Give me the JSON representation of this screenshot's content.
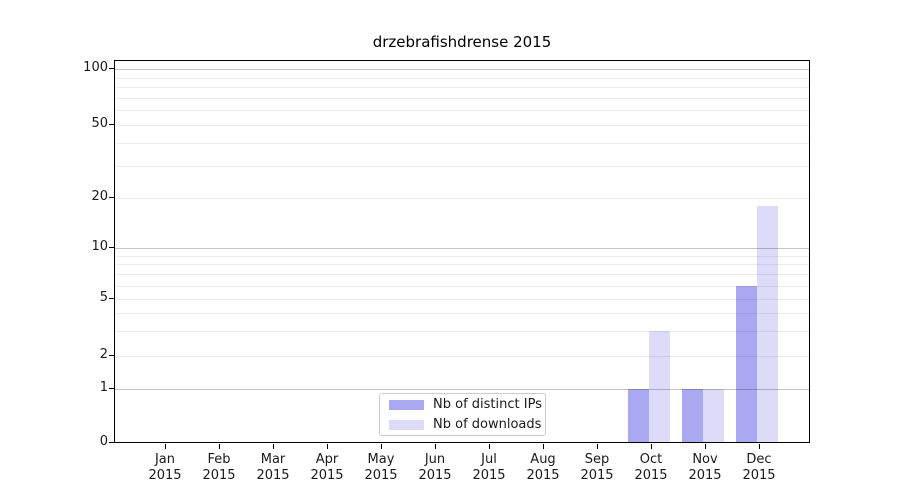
{
  "chart_data": {
    "type": "bar",
    "title": "drzebrafishdrense 2015",
    "categories": [
      "Jan 2015",
      "Feb 2015",
      "Mar 2015",
      "Apr 2015",
      "May 2015",
      "Jun 2015",
      "Jul 2015",
      "Aug 2015",
      "Sep 2015",
      "Oct 2015",
      "Nov 2015",
      "Dec 2015"
    ],
    "x_tick_lines": [
      [
        "Jan",
        "2015"
      ],
      [
        "Feb",
        "2015"
      ],
      [
        "Mar",
        "2015"
      ],
      [
        "Apr",
        "2015"
      ],
      [
        "May",
        "2015"
      ],
      [
        "Jun",
        "2015"
      ],
      [
        "Jul",
        "2015"
      ],
      [
        "Aug",
        "2015"
      ],
      [
        "Sep",
        "2015"
      ],
      [
        "Oct",
        "2015"
      ],
      [
        "Nov",
        "2015"
      ],
      [
        "Dec",
        "2015"
      ]
    ],
    "series": [
      {
        "name": "Nb of distinct IPs",
        "color": "#a9a9f2",
        "values": [
          0,
          0,
          0,
          0,
          0,
          0,
          0,
          0,
          0,
          1,
          1,
          6
        ]
      },
      {
        "name": "Nb of downloads",
        "color": "#dcdcf8",
        "values": [
          0,
          0,
          0,
          0,
          0,
          0,
          0,
          0,
          0,
          3,
          1,
          18
        ]
      }
    ],
    "yscale": "symlog",
    "yticks": [
      0,
      1,
      2,
      5,
      10,
      20,
      50,
      100
    ],
    "gridlines": {
      "major": [
        1,
        10,
        100
      ],
      "minor": [
        2,
        3,
        4,
        5,
        6,
        7,
        8,
        9,
        20,
        30,
        40,
        50,
        60,
        70,
        80,
        90
      ]
    },
    "ylim": [
      0,
      112
    ],
    "xlabel": "",
    "ylabel": "",
    "grid": true,
    "legend_position": "lower center"
  },
  "legend": {
    "items": [
      {
        "label": "Nb of distinct IPs",
        "color": "#a9a9f2"
      },
      {
        "label": "Nb of downloads",
        "color": "#dcdcf8"
      }
    ]
  },
  "colors": {
    "bar_distinct_ips": "#a9a9f2",
    "bar_downloads": "#dcdcf8",
    "grid_major": "#0000003b",
    "grid_minor": "#00000013",
    "spine": "#000000",
    "text": "#1a1a1a",
    "legend_border": "#cccccc",
    "background": "#ffffff"
  }
}
